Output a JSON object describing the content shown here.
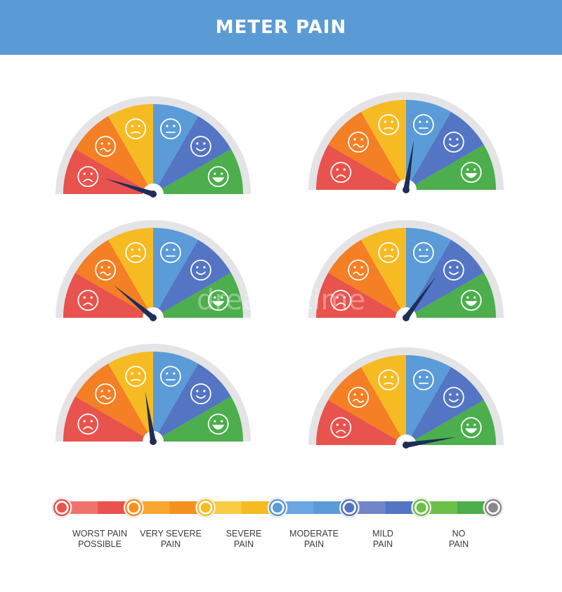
{
  "header": {
    "title": "METER PAIN",
    "background": "#5b9bd5"
  },
  "gauges": [
    {
      "needle_level": 0.1
    },
    {
      "needle_level": 0.55
    },
    {
      "needle_level": 0.22
    },
    {
      "needle_level": 0.7
    },
    {
      "needle_level": 0.45
    },
    {
      "needle_level": 0.95
    }
  ],
  "segments": [
    {
      "color": "#e8534d",
      "face": "sad"
    },
    {
      "color": "#f47f24",
      "face": "wavy"
    },
    {
      "color": "#f6bb23",
      "face": "frown"
    },
    {
      "color": "#5b9bd8",
      "face": "neutral"
    },
    {
      "color": "#5475c3",
      "face": "smile"
    },
    {
      "color": "#4cae4c",
      "face": "grin"
    }
  ],
  "scale": {
    "labels": [
      {
        "line1": "WORST PAIN",
        "line2": "POSSIBLE"
      },
      {
        "line1": "VERY SEVERE",
        "line2": "PAIN"
      },
      {
        "line1": "SEVERE",
        "line2": "PAIN"
      },
      {
        "line1": "MODERATE",
        "line2": "PAIN"
      },
      {
        "line1": "MILD",
        "line2": "PAIN"
      },
      {
        "line1": "NO",
        "line2": "PAIN"
      }
    ],
    "bands": [
      "#f0746e",
      "#e8534d",
      "#f7a72f",
      "#f4901f",
      "#f8cc45",
      "#f6bb23",
      "#6aa6df",
      "#5b9bd8",
      "#7186c9",
      "#5475c3",
      "#6cc04a",
      "#4cae4c"
    ],
    "markers": [
      "#e8534d",
      "#f4901f",
      "#f6bb23",
      "#5b9bd8",
      "#5475c3",
      "#6cc04a",
      "#888888"
    ]
  },
  "needle_color": "#1f2d5a",
  "watermark": "dreamstime"
}
